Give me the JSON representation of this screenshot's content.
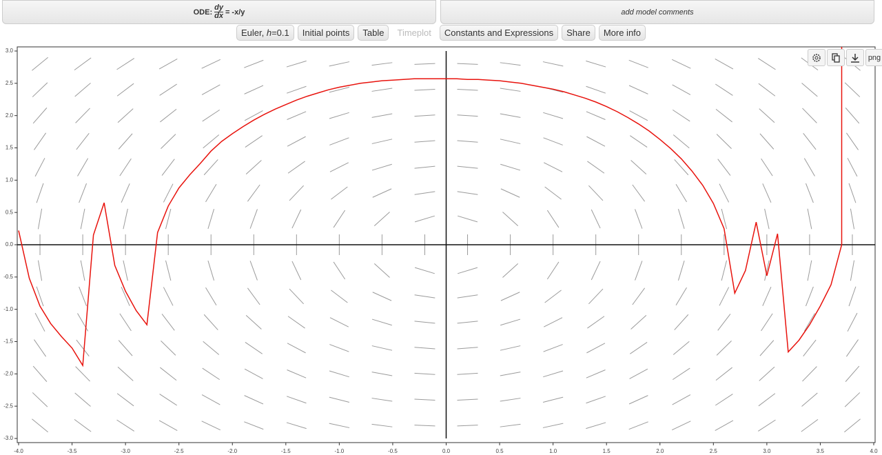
{
  "header": {
    "ode": {
      "prefix": "ODE:",
      "numerator": "dy",
      "denominator": "dx",
      "rhs": "= -x/y"
    },
    "comments_placeholder": "add model comments"
  },
  "buttons": {
    "method": {
      "name": "Euler,",
      "step_symbol": "h",
      "step_value": "=0.1"
    },
    "items": [
      "Initial points",
      "Table",
      "Timeplot",
      "Constants and Expressions",
      "Share",
      "More info"
    ],
    "disabled": [
      "Timeplot"
    ]
  },
  "toolbar": {
    "export_label": "png"
  },
  "chart_data": {
    "type": "line",
    "x": [
      -4.0,
      -3.9,
      -3.8,
      -3.7,
      -3.6,
      -3.5,
      -3.4,
      -3.3,
      -3.2,
      -3.1,
      -3.0,
      -2.9,
      -2.8,
      -2.7,
      -2.6,
      -2.5,
      -2.4,
      -2.3,
      -2.2,
      -2.1,
      -2.0,
      -1.9,
      -1.8,
      -1.7,
      -1.6,
      -1.5,
      -1.4,
      -1.3,
      -1.2,
      -1.1,
      -1.0,
      -0.9,
      -0.8,
      -0.7,
      -0.6,
      -0.5,
      -0.4,
      -0.3,
      -0.2,
      -0.1,
      0.0,
      0.1,
      0.2,
      0.3,
      0.4,
      0.5,
      0.6,
      0.7,
      0.8,
      0.9,
      1.0,
      1.1,
      1.2,
      1.3,
      1.4,
      1.5,
      1.6,
      1.7,
      1.8,
      1.9,
      2.0,
      2.1,
      2.2,
      2.3,
      2.4,
      2.5,
      2.6,
      2.7,
      2.8,
      2.9,
      3.0,
      3.1,
      3.2,
      3.3,
      3.4,
      3.5,
      3.6,
      3.7,
      3.7
    ],
    "series": [
      {
        "color": "#e8120c",
        "values": [
          0.22,
          -0.52,
          -0.95,
          -1.22,
          -1.42,
          -1.6,
          -1.87,
          0.15,
          0.65,
          -0.32,
          -0.72,
          -1.02,
          -1.24,
          0.19,
          0.6,
          0.88,
          1.08,
          1.26,
          1.45,
          1.6,
          1.72,
          1.83,
          1.93,
          2.02,
          2.1,
          2.17,
          2.24,
          2.3,
          2.35,
          2.4,
          2.44,
          2.47,
          2.5,
          2.52,
          2.54,
          2.55,
          2.56,
          2.57,
          2.57,
          2.57,
          2.57,
          2.57,
          2.56,
          2.56,
          2.55,
          2.54,
          2.52,
          2.5,
          2.47,
          2.44,
          2.41,
          2.37,
          2.32,
          2.27,
          2.21,
          2.14,
          2.06,
          1.97,
          1.87,
          1.76,
          1.63,
          1.49,
          1.33,
          1.14,
          0.92,
          0.64,
          0.25,
          -0.75,
          -0.4,
          0.35,
          -0.48,
          0.17,
          -1.66,
          -1.48,
          -1.24,
          -0.95,
          -0.62,
          0.0,
          3.1
        ]
      }
    ],
    "xlim": [
      -4.0,
      4.0
    ],
    "ylim": [
      -3.0,
      3.0
    ],
    "xticks": [
      {
        "value": -4.0,
        "label": "-4.0"
      },
      {
        "value": -3.5,
        "label": "-3.5"
      },
      {
        "value": -3.0,
        "label": "-3.0"
      },
      {
        "value": -2.5,
        "label": "-2.5"
      },
      {
        "value": -2.0,
        "label": "-2.0"
      },
      {
        "value": -1.5,
        "label": "-1.5"
      },
      {
        "value": -1.0,
        "label": "-1.0"
      },
      {
        "value": -0.5,
        "label": "-0.5"
      },
      {
        "value": 0.0,
        "label": "0.0"
      },
      {
        "value": 0.5,
        "label": "0.5"
      },
      {
        "value": 1.0,
        "label": "1.0"
      },
      {
        "value": 1.5,
        "label": "1.5"
      },
      {
        "value": 2.0,
        "label": "2.0"
      },
      {
        "value": 2.5,
        "label": "2.5"
      },
      {
        "value": 3.0,
        "label": "3.0"
      },
      {
        "value": 3.5,
        "label": "3.5"
      },
      {
        "value": 4.0,
        "label": "4.0"
      }
    ],
    "yticks": [
      {
        "value": -3.0,
        "label": "-3.0"
      },
      {
        "value": -2.5,
        "label": "-2.5"
      },
      {
        "value": -2.0,
        "label": "-2.0"
      },
      {
        "value": -1.5,
        "label": "-1.5"
      },
      {
        "value": -1.0,
        "label": "-1.0"
      },
      {
        "value": -0.5,
        "label": "-0.5"
      },
      {
        "value": 0.0,
        "label": "0.0"
      },
      {
        "value": 0.5,
        "label": "0.5"
      },
      {
        "value": 1.0,
        "label": "1.0"
      },
      {
        "value": 1.5,
        "label": "1.5"
      },
      {
        "value": 2.0,
        "label": "2.0"
      },
      {
        "value": 2.5,
        "label": "2.5"
      },
      {
        "value": 3.0,
        "label": "3.0"
      }
    ]
  }
}
